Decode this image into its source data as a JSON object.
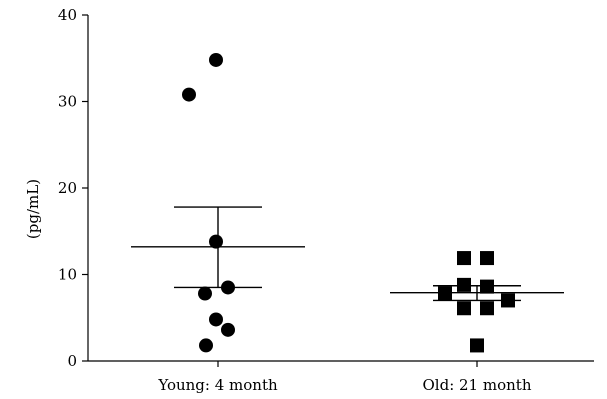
{
  "chart_data": {
    "type": "scatter",
    "ylabel": "(pg/mL)",
    "ylim": [
      0,
      40
    ],
    "yticks": [
      0,
      10,
      20,
      30,
      40
    ],
    "categories": [
      "Young: 4 month",
      "Old: 21 month"
    ],
    "series": [
      {
        "category": "Young: 4 month",
        "marker": "circle",
        "values": [
          34.8,
          30.8,
          13.8,
          8.5,
          7.8,
          4.8,
          3.6,
          1.8
        ],
        "mean": 13.2,
        "sem_upper": 17.8,
        "sem_lower": 8.5
      },
      {
        "category": "Old: 21 month",
        "marker": "square",
        "values": [
          11.9,
          11.9,
          8.8,
          8.6,
          7.8,
          7.0,
          6.1,
          6.1,
          1.8
        ],
        "mean": 7.9,
        "sem_upper": 8.7,
        "sem_lower": 7.0
      }
    ],
    "grid": false,
    "colors": {
      "marker": "#000000",
      "axis": "#000000"
    }
  }
}
